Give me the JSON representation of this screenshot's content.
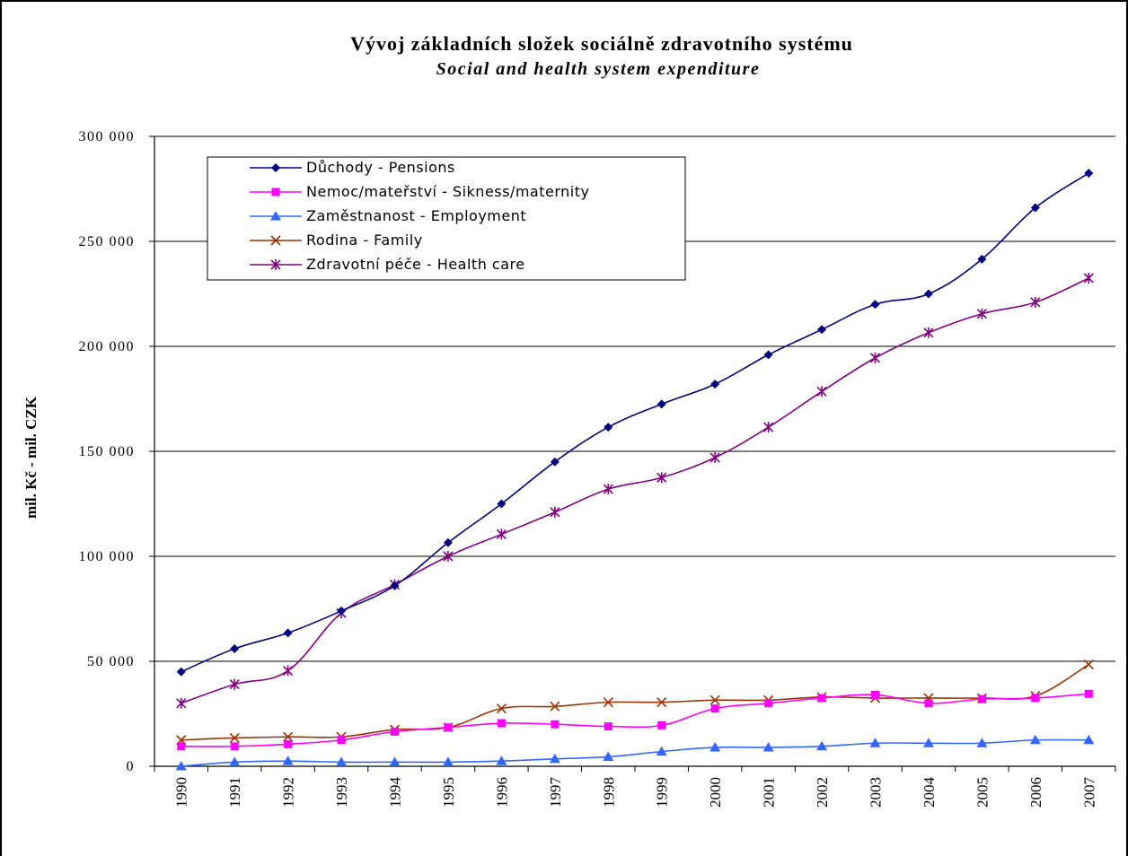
{
  "chart_data": {
    "type": "line",
    "title": "Vývoj základních složek sociálně zdravotního systému",
    "subtitle": "Social and health system expenditure",
    "ylabel": "mil. Kč - mil. CZK",
    "xlabel": "",
    "ylim": [
      0,
      300000
    ],
    "yticks": [
      {
        "value": 0,
        "label": "0"
      },
      {
        "value": 50000,
        "label": "50 000"
      },
      {
        "value": 100000,
        "label": "100 000"
      },
      {
        "value": 150000,
        "label": "150 000"
      },
      {
        "value": 200000,
        "label": "200 000"
      },
      {
        "value": 250000,
        "label": "250 000"
      },
      {
        "value": 300000,
        "label": "300 000"
      }
    ],
    "grid": "horizontal",
    "legend_position": "top-left",
    "categories": [
      "1990",
      "1991",
      "1992",
      "1993",
      "1994",
      "1995",
      "1996",
      "1997",
      "1998",
      "1999",
      "2000",
      "2001",
      "2002",
      "2003",
      "2004",
      "2005",
      "2006",
      "2007"
    ],
    "series": [
      {
        "name": "Důchody - Pensions",
        "color": "#000080",
        "marker": "diamond",
        "values": [
          45000,
          56000,
          63500,
          74000,
          86000,
          106500,
          125000,
          145000,
          161500,
          172500,
          182000,
          196000,
          208000,
          220000,
          225000,
          241500,
          266000,
          282500
        ]
      },
      {
        "name": "Nemoc/mateřství - Sikness/maternity",
        "color": "#ff00ff",
        "marker": "square",
        "values": [
          9500,
          9500,
          10500,
          12500,
          16500,
          18500,
          20500,
          20000,
          19000,
          19500,
          27500,
          30000,
          32500,
          34000,
          30000,
          32000,
          32500,
          34500
        ]
      },
      {
        "name": "Zaměstnanost - Employment",
        "color": "#3366ff",
        "marker": "triangle",
        "values": [
          0,
          2000,
          2500,
          2000,
          2000,
          2000,
          2500,
          3500,
          4500,
          7000,
          9000,
          9000,
          9500,
          11000,
          11000,
          11000,
          12500,
          12500
        ]
      },
      {
        "name": "Rodina - Family",
        "color": "#993300",
        "marker": "x",
        "values": [
          12500,
          13500,
          14000,
          14000,
          17500,
          18500,
          27500,
          28500,
          30500,
          30500,
          31500,
          31500,
          33000,
          32500,
          32500,
          32500,
          33500,
          48500
        ]
      },
      {
        "name": "Zdravotní péče - Health care",
        "color": "#800080",
        "marker": "star",
        "values": [
          30000,
          39000,
          45500,
          73000,
          86500,
          100000,
          110500,
          121000,
          132000,
          137500,
          147000,
          161500,
          178500,
          194500,
          206500,
          215500,
          221000,
          232500
        ]
      }
    ]
  }
}
